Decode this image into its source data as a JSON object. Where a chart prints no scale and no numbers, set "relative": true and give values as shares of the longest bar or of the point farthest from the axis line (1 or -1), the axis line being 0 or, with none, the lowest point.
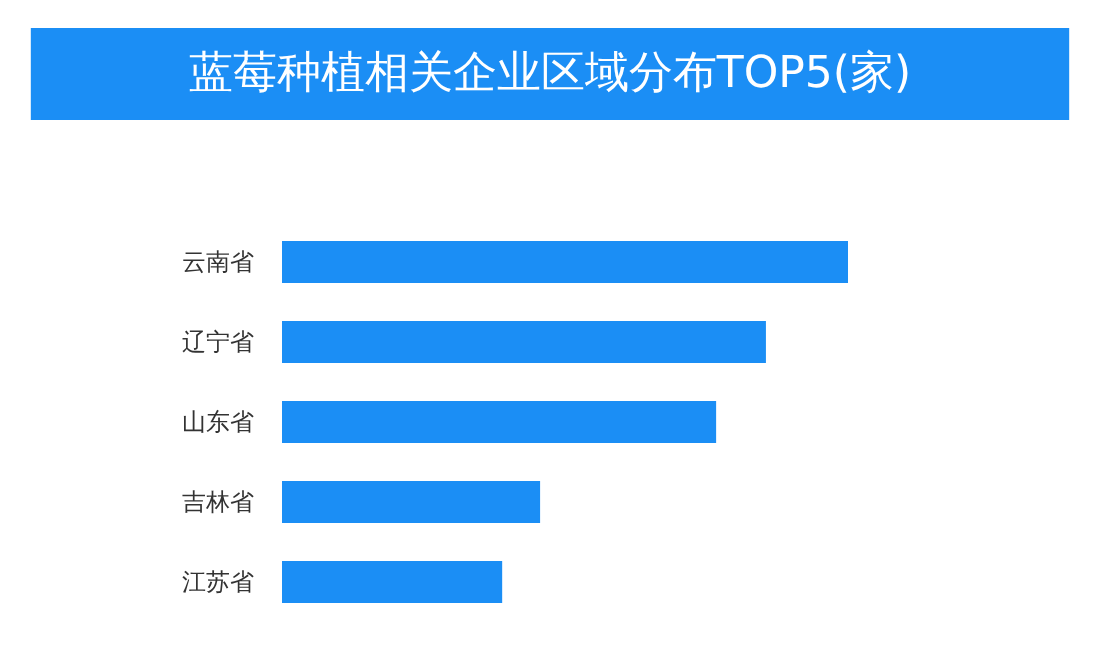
{
  "chart_data": {
    "type": "bar",
    "orientation": "horizontal",
    "relative": true,
    "title": "蓝莓种植相关企业区域分布TOP5(家)",
    "categories": [
      "云南省",
      "辽宁省",
      "山东省",
      "吉林省",
      "江苏省"
    ],
    "values": [
      1,
      0.855,
      0.767,
      0.456,
      0.389
    ],
    "color": "#1b8ef5"
  }
}
